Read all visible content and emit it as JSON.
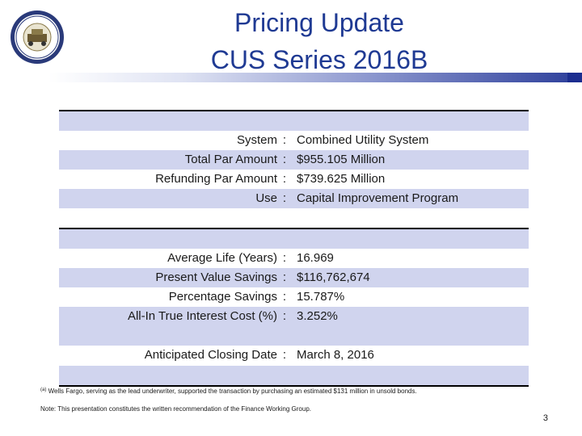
{
  "title": {
    "line1": "Pricing Update",
    "line2": "CUS Series 2016B"
  },
  "section1": [
    {
      "label": "System",
      "value": "Combined Utility System"
    },
    {
      "label": "Total Par Amount",
      "value": "$955.105 Million"
    },
    {
      "label": "Refunding Par Amount",
      "value": "$739.625 Million"
    },
    {
      "label": "Use",
      "value": "Capital Improvement Program"
    }
  ],
  "section2": [
    {
      "label": "Average Life (Years)",
      "value": "16.969"
    },
    {
      "label": "Present Value Savings",
      "value": "$116,762,674"
    },
    {
      "label": "Percentage Savings",
      "value": "15.787%"
    },
    {
      "label": "All-In True Interest Cost (%)",
      "value": "3.252%"
    }
  ],
  "closing": {
    "label": "Anticipated Closing Date",
    "value": "March 8, 2016"
  },
  "colon": ":",
  "footnote": {
    "marker": "(a)",
    "text": "Wells Fargo, serving as the lead underwriter, supported the transaction by purchasing an estimated $131 million in unsold bonds."
  },
  "note": "Note:  This presentation constitutes the written recommendation of the Finance Working Group.",
  "page_number": "3",
  "colors": {
    "title": "#1f3a93",
    "shade": "#d0d4ee",
    "bar": "#2b3d9a"
  },
  "icons": {
    "seal": "city-seal-icon"
  }
}
